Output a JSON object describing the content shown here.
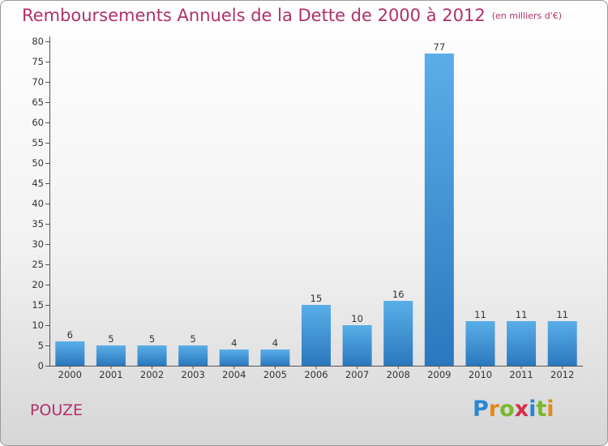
{
  "header": {
    "title": "Remboursements Annuels de la Dette de 2000 à 2012",
    "unit": "(en milliers d'€)"
  },
  "footer": {
    "commune": "POUZE",
    "logo": "Proxiti"
  },
  "colors": {
    "title": "#b0306a",
    "bar_top": "#5aaee8",
    "bar_bottom": "#2a78be"
  },
  "chart_data": {
    "type": "bar",
    "title": "Remboursements Annuels de la Dette de 2000 à 2012",
    "subtitle": "(en milliers d'€)",
    "xlabel": "",
    "ylabel": "",
    "categories": [
      "2000",
      "2001",
      "2002",
      "2003",
      "2004",
      "2005",
      "2006",
      "2007",
      "2008",
      "2009",
      "2010",
      "2011",
      "2012"
    ],
    "values": [
      6,
      5,
      5,
      5,
      4,
      4,
      15,
      10,
      16,
      77,
      11,
      11,
      11
    ],
    "ylim": [
      0,
      80
    ],
    "yticks": [
      0,
      5,
      10,
      15,
      20,
      25,
      30,
      35,
      40,
      45,
      50,
      55,
      60,
      65,
      70,
      75,
      80
    ],
    "grid": false,
    "legend": "none"
  }
}
